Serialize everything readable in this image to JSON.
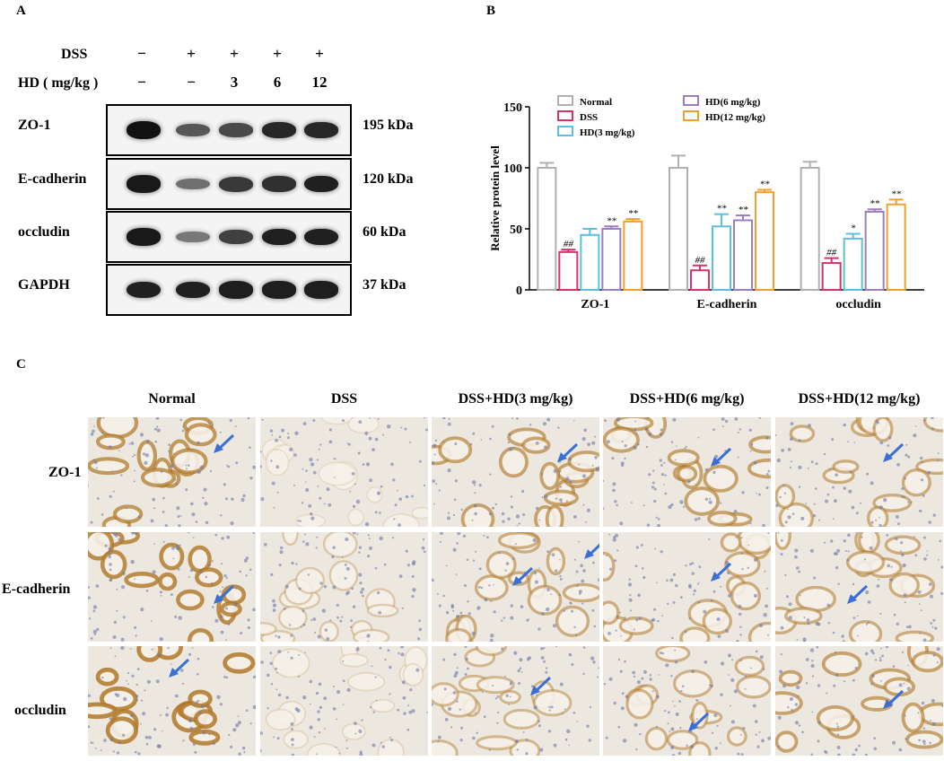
{
  "panels": {
    "a": "A",
    "b": "B",
    "c": "C"
  },
  "blot": {
    "dss_label": "DSS",
    "hd_label": "HD ( mg/kg )",
    "dss_signs": [
      "−",
      "+",
      "+",
      "+",
      "+"
    ],
    "hd_doses": [
      "−",
      "−",
      "3",
      "6",
      "12"
    ],
    "rows": [
      {
        "name": "ZO-1",
        "kda": "195 kDa",
        "intensity": [
          1.0,
          0.55,
          0.65,
          0.85,
          0.85
        ]
      },
      {
        "name": "E-cadherin",
        "kda": "120 kDa",
        "intensity": [
          0.95,
          0.4,
          0.75,
          0.8,
          0.9
        ]
      },
      {
        "name": "occludin",
        "kda": "60 kDa",
        "intensity": [
          0.95,
          0.35,
          0.7,
          0.9,
          0.9
        ]
      },
      {
        "name": "GAPDH",
        "kda": "37 kDa",
        "intensity": [
          0.9,
          0.9,
          0.92,
          0.92,
          0.92
        ]
      }
    ]
  },
  "chart_data": {
    "type": "bar",
    "ylabel": "Relative protein level",
    "ylim": [
      0,
      150
    ],
    "yticks": [
      0,
      50,
      100,
      150
    ],
    "categories": [
      "ZO-1",
      "E-cadherin",
      "occludin"
    ],
    "series": [
      {
        "name": "Normal",
        "color": "#b0b0b0",
        "values": [
          100,
          100,
          100
        ],
        "errors": [
          4,
          10,
          5
        ],
        "sig": [
          "",
          "",
          ""
        ]
      },
      {
        "name": "DSS",
        "color": "#d6336c",
        "values": [
          31,
          16,
          22
        ],
        "errors": [
          2,
          4,
          4
        ],
        "sig": [
          "##",
          "##",
          "##"
        ]
      },
      {
        "name": "HD(3 mg/kg)",
        "color": "#5bc0de",
        "values": [
          45,
          52,
          42
        ],
        "errors": [
          5,
          10,
          4
        ],
        "sig": [
          "",
          "**",
          "*"
        ]
      },
      {
        "name": "HD(6 mg/kg)",
        "color": "#9b7fbf",
        "values": [
          50,
          57,
          64
        ],
        "errors": [
          2,
          4,
          2
        ],
        "sig": [
          "**",
          "**",
          "**"
        ]
      },
      {
        "name": "HD(12 mg/kg)",
        "color": "#f0a030",
        "values": [
          56,
          80,
          70
        ],
        "errors": [
          2,
          2,
          4
        ],
        "sig": [
          "**",
          "**",
          "**"
        ]
      }
    ],
    "legend": "top"
  },
  "ihc": {
    "columns": [
      "Normal",
      "DSS",
      "DSS+HD(3 mg/kg)",
      "DSS+HD(6 mg/kg)",
      "DSS+HD(12 mg/kg)"
    ],
    "rows": [
      "ZO-1",
      "E-cadherin",
      "occludin"
    ],
    "arrow_color": "#3a6fd8"
  }
}
